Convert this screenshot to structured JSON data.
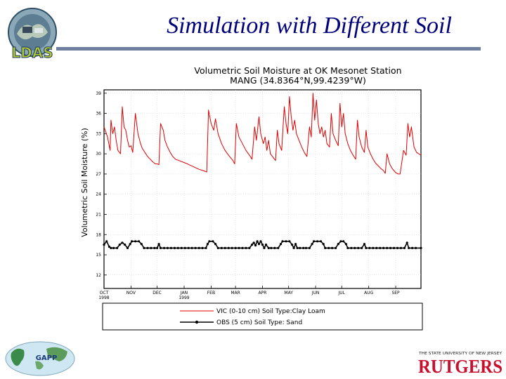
{
  "slide": {
    "title": "Simulation with Different Soil",
    "logos": {
      "ldas": "LDAS",
      "gapp": "GAPP",
      "rutgers_top": "THE STATE UNIVERSITY OF NEW JERSEY",
      "rutgers": "RUTGERS"
    }
  },
  "colors": {
    "title": "#00007a",
    "vic_series": "#dd0000",
    "obs_series": "#000000",
    "rule": "#6f7f9f"
  },
  "chart_data": {
    "type": "line",
    "title": "Volumetric Soil Moisture at OK Mesonet Station",
    "subtitle": "MANG (34.8364°N,99.4239°W)",
    "ylabel": "Volumetric Soil Moisture (%)",
    "xlabel": "",
    "ylim": [
      10,
      39.5
    ],
    "yticks": [
      12,
      15,
      18,
      21,
      24,
      27,
      30,
      33,
      36,
      39
    ],
    "x_range": [
      "1998-10-01",
      "1999-09-30"
    ],
    "xticks": [
      {
        "date": "1998-10-01",
        "label": "OCT",
        "sub": "1998"
      },
      {
        "date": "1998-11-01",
        "label": "NOV",
        "sub": ""
      },
      {
        "date": "1998-12-01",
        "label": "DEC",
        "sub": ""
      },
      {
        "date": "1999-01-01",
        "label": "JAN",
        "sub": "1999"
      },
      {
        "date": "1999-02-01",
        "label": "FEB",
        "sub": ""
      },
      {
        "date": "1999-03-01",
        "label": "MAR",
        "sub": ""
      },
      {
        "date": "1999-04-01",
        "label": "APR",
        "sub": ""
      },
      {
        "date": "1999-05-01",
        "label": "MAY",
        "sub": ""
      },
      {
        "date": "1999-06-01",
        "label": "JUN",
        "sub": ""
      },
      {
        "date": "1999-07-01",
        "label": "JUL",
        "sub": ""
      },
      {
        "date": "1999-08-01",
        "label": "AUG",
        "sub": ""
      },
      {
        "date": "1999-09-01",
        "label": "SEP",
        "sub": ""
      }
    ],
    "grid": true,
    "legend_position": "bottom",
    "series": [
      {
        "name": "VIC (0-10 cm) Soil Type:Clay Loam",
        "marker": "none",
        "points": [
          [
            "1998-10-01",
            34.0
          ],
          [
            "1998-10-05",
            32.5
          ],
          [
            "1998-10-08",
            30.5
          ],
          [
            "1998-10-09",
            35.0
          ],
          [
            "1998-10-11",
            33.0
          ],
          [
            "1998-10-13",
            34.0
          ],
          [
            "1998-10-15",
            32.0
          ],
          [
            "1998-10-17",
            30.5
          ],
          [
            "1998-10-20",
            30.0
          ],
          [
            "1998-10-22",
            37.0
          ],
          [
            "1998-10-24",
            34.0
          ],
          [
            "1998-10-26",
            33.5
          ],
          [
            "1998-10-28",
            32.0
          ],
          [
            "1998-10-30",
            31.0
          ],
          [
            "1998-11-01",
            31.2
          ],
          [
            "1998-11-03",
            30.2
          ],
          [
            "1998-11-06",
            36.0
          ],
          [
            "1998-11-09",
            33.0
          ],
          [
            "1998-11-12",
            31.5
          ],
          [
            "1998-11-14",
            30.8
          ],
          [
            "1998-11-17",
            30.2
          ],
          [
            "1998-11-20",
            29.6
          ],
          [
            "1998-11-23",
            29.2
          ],
          [
            "1998-11-26",
            28.8
          ],
          [
            "1998-11-29",
            28.5
          ],
          [
            "1998-12-01",
            28.5
          ],
          [
            "1998-12-03",
            28.4
          ],
          [
            "1998-12-05",
            34.5
          ],
          [
            "1998-12-08",
            33.5
          ],
          [
            "1998-12-10",
            32.0
          ],
          [
            "1998-12-13",
            31.0
          ],
          [
            "1998-12-16",
            30.2
          ],
          [
            "1998-12-19",
            29.6
          ],
          [
            "1998-12-22",
            29.2
          ],
          [
            "1998-12-26",
            29.0
          ],
          [
            "1998-12-30",
            28.8
          ],
          [
            "1999-01-03",
            28.6
          ],
          [
            "1999-01-08",
            28.3
          ],
          [
            "1999-01-13",
            28.0
          ],
          [
            "1999-01-18",
            27.7
          ],
          [
            "1999-01-23",
            27.5
          ],
          [
            "1999-01-27",
            27.3
          ],
          [
            "1999-01-29",
            36.5
          ],
          [
            "1999-02-01",
            34.5
          ],
          [
            "1999-02-04",
            33.5
          ],
          [
            "1999-02-06",
            35.2
          ],
          [
            "1999-02-09",
            33.0
          ],
          [
            "1999-02-13",
            31.5
          ],
          [
            "1999-02-17",
            30.5
          ],
          [
            "1999-02-21",
            29.8
          ],
          [
            "1999-02-26",
            29.0
          ],
          [
            "1999-02-28",
            28.5
          ],
          [
            "1999-03-02",
            34.5
          ],
          [
            "1999-03-05",
            32.5
          ],
          [
            "1999-03-09",
            31.5
          ],
          [
            "1999-03-13",
            30.5
          ],
          [
            "1999-03-17",
            29.8
          ],
          [
            "1999-03-20",
            29.2
          ],
          [
            "1999-03-23",
            34.0
          ],
          [
            "1999-03-25",
            32.0
          ],
          [
            "1999-03-28",
            35.5
          ],
          [
            "1999-03-30",
            33.0
          ],
          [
            "1999-04-02",
            31.5
          ],
          [
            "1999-04-04",
            32.5
          ],
          [
            "1999-04-06",
            30.5
          ],
          [
            "1999-04-08",
            32.0
          ],
          [
            "1999-04-10",
            30.0
          ],
          [
            "1999-04-13",
            29.5
          ],
          [
            "1999-04-16",
            29.0
          ],
          [
            "1999-04-18",
            33.5
          ],
          [
            "1999-04-20",
            31.5
          ],
          [
            "1999-04-23",
            30.5
          ],
          [
            "1999-04-26",
            37.0
          ],
          [
            "1999-04-28",
            34.5
          ],
          [
            "1999-04-30",
            33.0
          ],
          [
            "1999-05-02",
            38.5
          ],
          [
            "1999-05-04",
            35.5
          ],
          [
            "1999-05-06",
            33.5
          ],
          [
            "1999-05-08",
            35.0
          ],
          [
            "1999-05-10",
            33.0
          ],
          [
            "1999-05-13",
            32.0
          ],
          [
            "1999-05-16",
            31.0
          ],
          [
            "1999-05-19",
            30.2
          ],
          [
            "1999-05-22",
            29.6
          ],
          [
            "1999-05-25",
            34.0
          ],
          [
            "1999-05-27",
            32.5
          ],
          [
            "1999-05-29",
            39.0
          ],
          [
            "1999-05-31",
            35.0
          ],
          [
            "1999-06-02",
            38.0
          ],
          [
            "1999-06-04",
            34.5
          ],
          [
            "1999-06-06",
            33.0
          ],
          [
            "1999-06-08",
            34.0
          ],
          [
            "1999-06-10",
            32.5
          ],
          [
            "1999-06-12",
            33.5
          ],
          [
            "1999-06-14",
            31.5
          ],
          [
            "1999-06-17",
            31.0
          ],
          [
            "1999-06-19",
            36.0
          ],
          [
            "1999-06-21",
            33.0
          ],
          [
            "1999-06-24",
            32.0
          ],
          [
            "1999-06-27",
            31.2
          ],
          [
            "1999-06-29",
            37.5
          ],
          [
            "1999-07-01",
            34.0
          ],
          [
            "1999-07-03",
            36.0
          ],
          [
            "1999-07-05",
            33.0
          ],
          [
            "1999-07-08",
            31.5
          ],
          [
            "1999-07-11",
            30.5
          ],
          [
            "1999-07-14",
            29.8
          ],
          [
            "1999-07-17",
            29.2
          ],
          [
            "1999-07-19",
            35.0
          ],
          [
            "1999-07-21",
            32.5
          ],
          [
            "1999-07-24",
            31.0
          ],
          [
            "1999-07-27",
            30.2
          ],
          [
            "1999-07-29",
            33.5
          ],
          [
            "1999-07-31",
            31.0
          ],
          [
            "1999-08-03",
            30.0
          ],
          [
            "1999-08-06",
            29.2
          ],
          [
            "1999-08-09",
            28.6
          ],
          [
            "1999-08-12",
            28.2
          ],
          [
            "1999-08-15",
            27.8
          ],
          [
            "1999-08-18",
            27.5
          ],
          [
            "1999-08-20",
            27.1
          ],
          [
            "1999-08-22",
            30.0
          ],
          [
            "1999-08-25",
            28.5
          ],
          [
            "1999-08-28",
            27.8
          ],
          [
            "1999-09-01",
            27.2
          ],
          [
            "1999-09-04",
            27.0
          ],
          [
            "1999-09-06",
            27.0
          ],
          [
            "1999-09-10",
            30.5
          ],
          [
            "1999-09-13",
            29.8
          ],
          [
            "1999-09-15",
            34.5
          ],
          [
            "1999-09-17",
            32.5
          ],
          [
            "1999-09-19",
            34.0
          ],
          [
            "1999-09-22",
            31.0
          ],
          [
            "1999-09-25",
            30.2
          ],
          [
            "1999-09-30",
            29.8
          ]
        ]
      },
      {
        "name": "OBS (5 cm) Soil Type: Sand",
        "marker": "dot",
        "points": [
          [
            "1998-10-01",
            16.5
          ],
          [
            "1998-10-04",
            17.0
          ],
          [
            "1998-10-07",
            16.2
          ],
          [
            "1998-10-09",
            16.0
          ],
          [
            "1998-10-12",
            16.0
          ],
          [
            "1998-10-16",
            16.0
          ],
          [
            "1998-10-19",
            16.5
          ],
          [
            "1998-10-22",
            16.8
          ],
          [
            "1998-10-25",
            16.5
          ],
          [
            "1998-10-28",
            16.0
          ],
          [
            "1998-10-31",
            16.6
          ],
          [
            "1998-11-02",
            17.0
          ],
          [
            "1998-11-06",
            17.0
          ],
          [
            "1998-11-10",
            17.0
          ],
          [
            "1998-11-13",
            16.6
          ],
          [
            "1998-11-16",
            16.0
          ],
          [
            "1998-11-20",
            16.0
          ],
          [
            "1998-11-24",
            16.0
          ],
          [
            "1998-11-28",
            16.0
          ],
          [
            "1998-12-01",
            16.0
          ],
          [
            "1998-12-03",
            16.6
          ],
          [
            "1998-12-05",
            16.0
          ],
          [
            "1998-12-09",
            16.0
          ],
          [
            "1998-12-13",
            16.0
          ],
          [
            "1998-12-17",
            16.0
          ],
          [
            "1998-12-21",
            16.0
          ],
          [
            "1998-12-25",
            16.0
          ],
          [
            "1998-12-29",
            16.0
          ],
          [
            "1999-01-02",
            16.0
          ],
          [
            "1999-01-06",
            16.0
          ],
          [
            "1999-01-10",
            16.0
          ],
          [
            "1999-01-14",
            16.0
          ],
          [
            "1999-01-18",
            16.0
          ],
          [
            "1999-01-22",
            16.0
          ],
          [
            "1999-01-26",
            16.0
          ],
          [
            "1999-01-28",
            16.6
          ],
          [
            "1999-01-30",
            17.0
          ],
          [
            "1999-02-03",
            17.0
          ],
          [
            "1999-02-06",
            16.6
          ],
          [
            "1999-02-09",
            16.0
          ],
          [
            "1999-02-13",
            16.0
          ],
          [
            "1999-02-17",
            16.0
          ],
          [
            "1999-02-21",
            16.0
          ],
          [
            "1999-02-25",
            16.0
          ],
          [
            "1999-03-01",
            16.0
          ],
          [
            "1999-03-05",
            16.0
          ],
          [
            "1999-03-09",
            16.0
          ],
          [
            "1999-03-13",
            16.0
          ],
          [
            "1999-03-17",
            16.0
          ],
          [
            "1999-03-20",
            16.5
          ],
          [
            "1999-03-22",
            16.8
          ],
          [
            "1999-03-24",
            16.4
          ],
          [
            "1999-03-26",
            17.0
          ],
          [
            "1999-03-28",
            16.6
          ],
          [
            "1999-03-30",
            17.0
          ],
          [
            "1999-04-01",
            16.5
          ],
          [
            "1999-04-03",
            16.0
          ],
          [
            "1999-04-05",
            16.5
          ],
          [
            "1999-04-08",
            16.0
          ],
          [
            "1999-04-11",
            16.0
          ],
          [
            "1999-04-15",
            16.0
          ],
          [
            "1999-04-19",
            16.0
          ],
          [
            "1999-04-22",
            16.6
          ],
          [
            "1999-04-24",
            17.0
          ],
          [
            "1999-04-28",
            17.0
          ],
          [
            "1999-05-02",
            17.0
          ],
          [
            "1999-05-05",
            16.5
          ],
          [
            "1999-05-07",
            16.0
          ],
          [
            "1999-05-09",
            16.6
          ],
          [
            "1999-05-11",
            16.0
          ],
          [
            "1999-05-14",
            16.0
          ],
          [
            "1999-05-18",
            16.0
          ],
          [
            "1999-05-21",
            16.0
          ],
          [
            "1999-05-25",
            16.0
          ],
          [
            "1999-05-28",
            16.6
          ],
          [
            "1999-05-30",
            17.0
          ],
          [
            "1999-06-03",
            17.0
          ],
          [
            "1999-06-07",
            17.0
          ],
          [
            "1999-06-10",
            16.6
          ],
          [
            "1999-06-12",
            16.0
          ],
          [
            "1999-06-16",
            16.0
          ],
          [
            "1999-06-20",
            16.0
          ],
          [
            "1999-06-24",
            16.0
          ],
          [
            "1999-06-27",
            16.6
          ],
          [
            "1999-06-30",
            17.0
          ],
          [
            "1999-07-03",
            17.0
          ],
          [
            "1999-07-06",
            16.6
          ],
          [
            "1999-07-08",
            16.0
          ],
          [
            "1999-07-12",
            16.0
          ],
          [
            "1999-07-16",
            16.0
          ],
          [
            "1999-07-20",
            16.0
          ],
          [
            "1999-07-24",
            16.0
          ],
          [
            "1999-07-27",
            16.6
          ],
          [
            "1999-07-29",
            16.0
          ],
          [
            "1999-08-02",
            16.0
          ],
          [
            "1999-08-06",
            16.0
          ],
          [
            "1999-08-10",
            16.0
          ],
          [
            "1999-08-14",
            16.0
          ],
          [
            "1999-08-18",
            16.0
          ],
          [
            "1999-08-22",
            16.0
          ],
          [
            "1999-08-26",
            16.0
          ],
          [
            "1999-08-30",
            16.0
          ],
          [
            "1999-09-03",
            16.0
          ],
          [
            "1999-09-07",
            16.0
          ],
          [
            "1999-09-11",
            16.0
          ],
          [
            "1999-09-14",
            16.8
          ],
          [
            "1999-09-16",
            16.0
          ],
          [
            "1999-09-20",
            16.0
          ],
          [
            "1999-09-24",
            16.0
          ],
          [
            "1999-09-30",
            16.0
          ]
        ]
      }
    ]
  }
}
